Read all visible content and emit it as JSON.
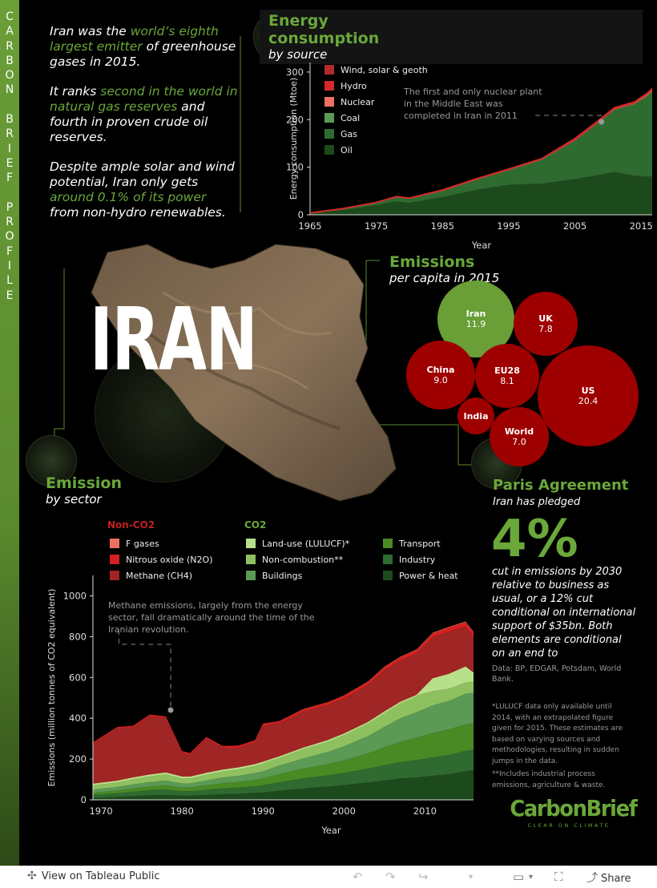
{
  "sidebar": {
    "letters": [
      "C",
      "A",
      "R",
      "B",
      "O",
      "N",
      "",
      "B",
      "R",
      "I",
      "E",
      "F",
      "",
      "P",
      "R",
      "O",
      "F",
      "I",
      "L",
      "E"
    ]
  },
  "intro": {
    "p1": {
      "a": "Iran was the ",
      "b": "world’s eighth largest emitter",
      "c": " of greenhouse gases in 2015."
    },
    "p2": {
      "a": "It ranks ",
      "b": "second in the world in natural gas reserves",
      "c": " and fourth in proven crude oil reserves."
    },
    "p3": {
      "a": "Despite ample solar and wind potential, Iran only gets ",
      "b": "around 0.1% of its power",
      "c": " from non-hydro renewables."
    }
  },
  "energy": {
    "title": "Energy consumption",
    "subtitle": "by source",
    "annotation": "The first and only nuclear plant in the Middle East was completed in Iran in 2011",
    "legend": [
      {
        "label": "Wind, solar & geoth",
        "color": "#b22a2a"
      },
      {
        "label": "Hydro",
        "color": "#d42a2a"
      },
      {
        "label": "Nuclear",
        "color": "#f07060"
      },
      {
        "label": "Coal",
        "color": "#5a9a55"
      },
      {
        "label": "Gas",
        "color": "#2f6a30"
      },
      {
        "label": "Oil",
        "color": "#1d4a1d"
      }
    ]
  },
  "map": {
    "title": "IRAN"
  },
  "emissions_pc": {
    "title": "Emissions",
    "subtitle": "per capita in 2015",
    "bubbles": [
      {
        "name": "Iran",
        "value": "11.9",
        "color": "#6a9e37"
      },
      {
        "name": "UK",
        "value": "7.8",
        "color": "#9e0000"
      },
      {
        "name": "China",
        "value": "9.0",
        "color": "#9e0000"
      },
      {
        "name": "EU28",
        "value": "8.1",
        "color": "#9e0000"
      },
      {
        "name": "US",
        "value": "20.4",
        "color": "#9e0000"
      },
      {
        "name": "India",
        "value": "",
        "color": "#9e0000"
      },
      {
        "name": "World",
        "value": "7.0",
        "color": "#9e0000"
      }
    ]
  },
  "sector": {
    "title": "Emission",
    "subtitle": "by sector",
    "annotation": "Methane emissions, largely from the energy sector, fall dramatically around the time of the Iranian revolution.",
    "legend_noncO2_title": "Non-CO2",
    "legend_co2_title": "CO2",
    "legend": [
      {
        "label": "F gases",
        "color": "#f07060"
      },
      {
        "label": "Nitrous oxide (N2O)",
        "color": "#d42020"
      },
      {
        "label": "Methane (CH4)",
        "color": "#a02525"
      },
      {
        "label": "Land-use (LULUCF)*",
        "color": "#b8e08a"
      },
      {
        "label": "Non-combustion**",
        "color": "#8fc060"
      },
      {
        "label": "Buildings",
        "color": "#5a9a55"
      },
      {
        "label": "Transport",
        "color": "#4a8a25"
      },
      {
        "label": "Industry",
        "color": "#2f6a30"
      },
      {
        "label": "Power & heat",
        "color": "#1d4a1d"
      }
    ]
  },
  "paris": {
    "title": "Paris Agreement",
    "pledge": "Iran has pledged",
    "big": "4%",
    "text": "cut in emissions by 2030 relative to business as usual, or a 12% cut conditional on international support of $35bn. Both elements are conditional on an end to",
    "source": "Data: BP, EDGAR, Potsdam, World Bank.",
    "footnote1": "*LULUCF data only available until 2014, with an extrapolated figure given for 2015. These estimates are based on varying sources and methodologies, resulting in sudden jumps in the data.",
    "footnote2": "**Includes industrial process emissions, agriculture & waste."
  },
  "logo": {
    "name": "CarbonBrief",
    "tagline": "CLEAR ON CLIMATE"
  },
  "toolbar": {
    "view_label": "View on Tableau Public",
    "share_label": "Share"
  },
  "chart_data": [
    {
      "type": "area",
      "title": "",
      "xlabel": "Year",
      "ylabel": "Energy consumption (Mtoe)",
      "xlim": [
        1965,
        2018
      ],
      "ylim": [
        0,
        320
      ],
      "x_ticks": [
        1965,
        1975,
        1985,
        1995,
        2005,
        2015
      ],
      "y_ticks": [
        0,
        100,
        200,
        300
      ],
      "x": [
        1965,
        1970,
        1975,
        1978,
        1980,
        1985,
        1990,
        1995,
        2000,
        2005,
        2008,
        2011,
        2014,
        2016,
        2018
      ],
      "series": [
        {
          "name": "Oil",
          "values": [
            4,
            10,
            20,
            28,
            25,
            37,
            52,
            63,
            65,
            75,
            82,
            90,
            82,
            80,
            82
          ]
        },
        {
          "name": "Gas",
          "values": [
            0,
            2,
            5,
            8,
            8,
            12,
            20,
            30,
            50,
            80,
            105,
            130,
            150,
            170,
            195
          ]
        },
        {
          "name": "Coal",
          "values": [
            0,
            0,
            0,
            1,
            1,
            1,
            1,
            1,
            1,
            1,
            1,
            1,
            1,
            1,
            1
          ]
        },
        {
          "name": "Nuclear",
          "values": [
            0,
            0,
            0,
            0,
            0,
            0,
            0,
            0,
            0,
            0,
            0,
            1,
            1,
            2,
            2
          ]
        },
        {
          "name": "Hydro",
          "values": [
            0,
            1,
            1,
            1,
            1,
            2,
            2,
            2,
            2,
            4,
            4,
            3,
            3,
            3,
            4
          ]
        },
        {
          "name": "Wind, solar & geoth",
          "values": [
            0,
            0,
            0,
            0,
            0,
            0,
            0,
            0,
            0,
            0,
            0,
            0,
            0,
            0,
            0
          ]
        }
      ]
    },
    {
      "type": "area",
      "title": "",
      "xlabel": "Year",
      "ylabel": "Emissions (million tonnes of CO2 equivalent)",
      "xlim": [
        1969,
        2016
      ],
      "ylim": [
        0,
        1100
      ],
      "x_ticks": [
        1970,
        1980,
        1990,
        2000,
        2010
      ],
      "y_ticks": [
        0,
        200,
        400,
        600,
        800,
        1000
      ],
      "x": [
        1969,
        1972,
        1974,
        1976,
        1978,
        1980,
        1981,
        1983,
        1985,
        1987,
        1989,
        1990,
        1992,
        1995,
        1998,
        2000,
        2003,
        2005,
        2007,
        2009,
        2011,
        2013,
        2015,
        2016
      ],
      "series": [
        {
          "name": "Power & heat",
          "values": [
            10,
            14,
            18,
            22,
            24,
            20,
            20,
            24,
            28,
            30,
            34,
            36,
            44,
            55,
            65,
            72,
            85,
            95,
            105,
            110,
            118,
            125,
            140,
            145
          ]
        },
        {
          "name": "Industry",
          "values": [
            15,
            18,
            22,
            25,
            27,
            22,
            22,
            25,
            28,
            30,
            33,
            35,
            42,
            50,
            55,
            60,
            68,
            75,
            80,
            85,
            90,
            95,
            100,
            100
          ]
        },
        {
          "name": "Transport",
          "values": [
            10,
            13,
            16,
            18,
            20,
            18,
            18,
            22,
            25,
            28,
            31,
            34,
            40,
            48,
            55,
            62,
            75,
            88,
            100,
            110,
            120,
            125,
            130,
            130
          ]
        },
        {
          "name": "Buildings",
          "values": [
            15,
            18,
            20,
            22,
            24,
            20,
            20,
            24,
            28,
            30,
            33,
            35,
            42,
            50,
            60,
            68,
            85,
            100,
            115,
            125,
            135,
            140,
            150,
            150
          ]
        },
        {
          "name": "Non-combustion**",
          "values": [
            20,
            22,
            25,
            28,
            30,
            25,
            25,
            28,
            30,
            32,
            35,
            38,
            42,
            50,
            55,
            60,
            66,
            72,
            78,
            82,
            70,
            60,
            55,
            55
          ]
        },
        {
          "name": "Land-use (LULUCF)*",
          "values": [
            6,
            6,
            6,
            6,
            6,
            6,
            6,
            6,
            6,
            6,
            6,
            6,
            0,
            0,
            0,
            0,
            0,
            0,
            0,
            0,
            60,
            70,
            75,
            40
          ]
        },
        {
          "name": "Methane (CH4)",
          "values": [
            200,
            260,
            250,
            290,
            270,
            120,
            110,
            170,
            110,
            100,
            110,
            180,
            165,
            180,
            175,
            175,
            185,
            205,
            205,
            205,
            205,
            210,
            200,
            180
          ]
        },
        {
          "name": "Nitrous oxide (N2O)",
          "values": [
            6,
            6,
            7,
            7,
            8,
            8,
            8,
            9,
            9,
            10,
            10,
            10,
            11,
            12,
            13,
            14,
            15,
            16,
            17,
            18,
            19,
            20,
            21,
            21
          ]
        },
        {
          "name": "F gases",
          "values": [
            0,
            0,
            0,
            0,
            0,
            0,
            0,
            0,
            0,
            0,
            0,
            0,
            0,
            1,
            1,
            1,
            2,
            2,
            2,
            3,
            3,
            3,
            3,
            3
          ]
        }
      ]
    }
  ]
}
